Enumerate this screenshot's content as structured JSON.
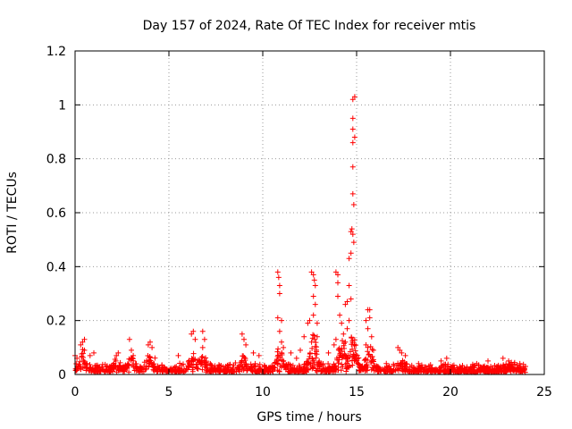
{
  "chart_data": {
    "type": "scatter",
    "title": "Day 157 of 2024, Rate Of TEC Index for receiver mtis",
    "xlabel": "GPS time / hours",
    "ylabel": "ROTI / TECUs",
    "xlim": [
      0,
      25
    ],
    "ylim": [
      0,
      1.2
    ],
    "xticks": [
      0,
      5,
      10,
      15,
      20,
      25
    ],
    "yticks": [
      0,
      0.2,
      0.4,
      0.6,
      0.8,
      1,
      1.2
    ],
    "xtick_labels": [
      "0",
      "5",
      "10",
      "15",
      "20",
      "25"
    ],
    "ytick_labels": [
      "0",
      "0.2",
      "0.4",
      "0.6",
      "0.8",
      "1",
      "1.2"
    ],
    "grid": true,
    "legend": "none",
    "marker": "plus",
    "color": "#ff0000",
    "x_range_of_data": [
      0,
      24
    ],
    "points": [
      [
        0.0,
        0.07
      ],
      [
        0.1,
        0.06
      ],
      [
        0.3,
        0.11
      ],
      [
        0.4,
        0.12
      ],
      [
        0.5,
        0.13
      ],
      [
        0.5,
        0.09
      ],
      [
        0.8,
        0.07
      ],
      [
        1.0,
        0.08
      ],
      [
        2.2,
        0.07
      ],
      [
        2.3,
        0.08
      ],
      [
        2.9,
        0.13
      ],
      [
        3.0,
        0.09
      ],
      [
        3.1,
        0.07
      ],
      [
        3.9,
        0.11
      ],
      [
        4.0,
        0.12
      ],
      [
        4.1,
        0.1
      ],
      [
        5.5,
        0.07
      ],
      [
        6.2,
        0.15
      ],
      [
        6.3,
        0.16
      ],
      [
        6.4,
        0.13
      ],
      [
        6.8,
        0.16
      ],
      [
        6.9,
        0.13
      ],
      [
        6.8,
        0.1
      ],
      [
        7.2,
        0.04
      ],
      [
        8.9,
        0.15
      ],
      [
        9.0,
        0.13
      ],
      [
        9.1,
        0.11
      ],
      [
        9.5,
        0.08
      ],
      [
        9.8,
        0.07
      ],
      [
        10.8,
        0.38
      ],
      [
        10.85,
        0.36
      ],
      [
        10.9,
        0.33
      ],
      [
        10.9,
        0.3
      ],
      [
        10.8,
        0.21
      ],
      [
        11.0,
        0.2
      ],
      [
        10.9,
        0.16
      ],
      [
        11.0,
        0.12
      ],
      [
        11.1,
        0.1
      ],
      [
        11.5,
        0.08
      ],
      [
        11.8,
        0.06
      ],
      [
        12.0,
        0.09
      ],
      [
        12.2,
        0.14
      ],
      [
        12.4,
        0.19
      ],
      [
        12.5,
        0.2
      ],
      [
        12.6,
        0.38
      ],
      [
        12.7,
        0.37
      ],
      [
        12.75,
        0.35
      ],
      [
        12.8,
        0.33
      ],
      [
        12.7,
        0.29
      ],
      [
        12.8,
        0.26
      ],
      [
        12.7,
        0.22
      ],
      [
        12.9,
        0.19
      ],
      [
        12.9,
        0.14
      ],
      [
        12.6,
        0.12
      ],
      [
        13.5,
        0.08
      ],
      [
        13.8,
        0.11
      ],
      [
        13.9,
        0.13
      ],
      [
        13.9,
        0.38
      ],
      [
        14.0,
        0.37
      ],
      [
        14.0,
        0.34
      ],
      [
        14.0,
        0.29
      ],
      [
        14.1,
        0.22
      ],
      [
        14.2,
        0.19
      ],
      [
        14.3,
        0.15
      ],
      [
        14.4,
        0.12
      ],
      [
        14.4,
        0.26
      ],
      [
        14.5,
        0.27
      ],
      [
        14.6,
        0.33
      ],
      [
        14.6,
        0.43
      ],
      [
        14.7,
        0.45
      ],
      [
        14.7,
        0.53
      ],
      [
        14.75,
        0.54
      ],
      [
        14.8,
        0.52
      ],
      [
        14.85,
        0.49
      ],
      [
        14.7,
        0.28
      ],
      [
        14.6,
        0.2
      ],
      [
        14.5,
        0.17
      ],
      [
        14.8,
        0.67
      ],
      [
        14.85,
        0.63
      ],
      [
        14.8,
        0.77
      ],
      [
        14.8,
        0.86
      ],
      [
        14.9,
        0.88
      ],
      [
        14.8,
        0.91
      ],
      [
        14.8,
        0.95
      ],
      [
        14.8,
        1.02
      ],
      [
        14.9,
        1.03
      ],
      [
        15.5,
        0.2
      ],
      [
        15.6,
        0.24
      ],
      [
        15.7,
        0.24
      ],
      [
        15.7,
        0.21
      ],
      [
        15.6,
        0.17
      ],
      [
        15.8,
        0.14
      ],
      [
        15.5,
        0.11
      ],
      [
        15.9,
        0.09
      ],
      [
        17.2,
        0.1
      ],
      [
        17.3,
        0.09
      ],
      [
        17.4,
        0.08
      ],
      [
        17.6,
        0.07
      ],
      [
        18.3,
        0.04
      ],
      [
        19.5,
        0.05
      ],
      [
        19.8,
        0.06
      ],
      [
        20.5,
        0.03
      ],
      [
        21.4,
        0.04
      ],
      [
        22.0,
        0.05
      ],
      [
        22.8,
        0.06
      ],
      [
        23.1,
        0.05
      ],
      [
        23.7,
        0.04
      ],
      [
        24.0,
        0.03
      ]
    ]
  }
}
